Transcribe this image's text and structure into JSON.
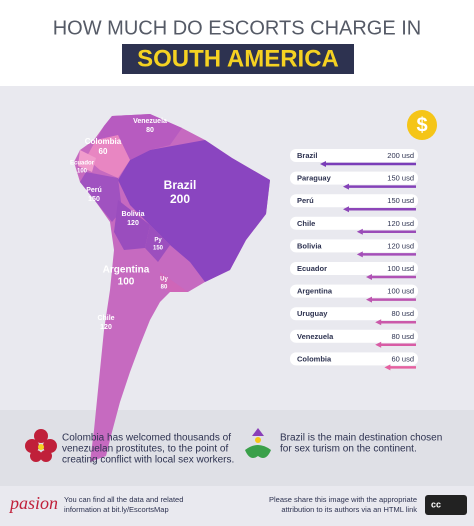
{
  "header": {
    "title": "HOW MUCH DO ESCORTS CHARGE IN",
    "highlight": "SOUTH AMERICA"
  },
  "badge": "$",
  "map": {
    "labels": [
      {
        "name": "Venezuela",
        "value": 80
      },
      {
        "name": "Colombia",
        "value": 60
      },
      {
        "name": "Ecuador",
        "value": 100
      },
      {
        "name": "Perú",
        "value": 150
      },
      {
        "name": "Brazil",
        "value": 200
      },
      {
        "name": "Bolivia",
        "value": 120
      },
      {
        "name": "Py",
        "value": 150
      },
      {
        "name": "Argentina",
        "value": 100
      },
      {
        "name": "Uy",
        "value": 80
      },
      {
        "name": "Chile",
        "value": 120
      }
    ]
  },
  "chart_data": {
    "type": "bar",
    "categories": [
      "Brazil",
      "Paraguay",
      "Perú",
      "Chile",
      "Bolivia",
      "Ecuador",
      "Argentina",
      "Uruguay",
      "Venezuela",
      "Colombia"
    ],
    "values": [
      200,
      150,
      150,
      120,
      120,
      100,
      100,
      80,
      80,
      60
    ],
    "value_labels": [
      "200 usd",
      "150 usd",
      "150 usd",
      "120 usd",
      "120 usd",
      "100 usd",
      "100 usd",
      "80 usd",
      "80 usd",
      "60 usd"
    ],
    "colors": [
      "#7a3db8",
      "#8442b8",
      "#8d46b8",
      "#9a4bb8",
      "#a44fb8",
      "#b052b5",
      "#bd55b0",
      "#cb59aa",
      "#d85ca5",
      "#e561a0"
    ]
  },
  "notes": [
    {
      "lines": [
        "Colombia has welcomed thousands of",
        "venezuelan prostitutes, to the point of",
        "creating conflict with local sex workers."
      ]
    },
    {
      "lines": [
        "Brazil is the main destination chosen",
        "for sex turism on the continent."
      ]
    }
  ],
  "footer": {
    "logo": "pasion",
    "left": [
      "You can find all the data and related",
      "information at bit.ly/EscortsMap"
    ],
    "right": [
      "Please share this image with the appropriate",
      "attribution to its authors via an HTML link"
    ],
    "license": "cc"
  }
}
